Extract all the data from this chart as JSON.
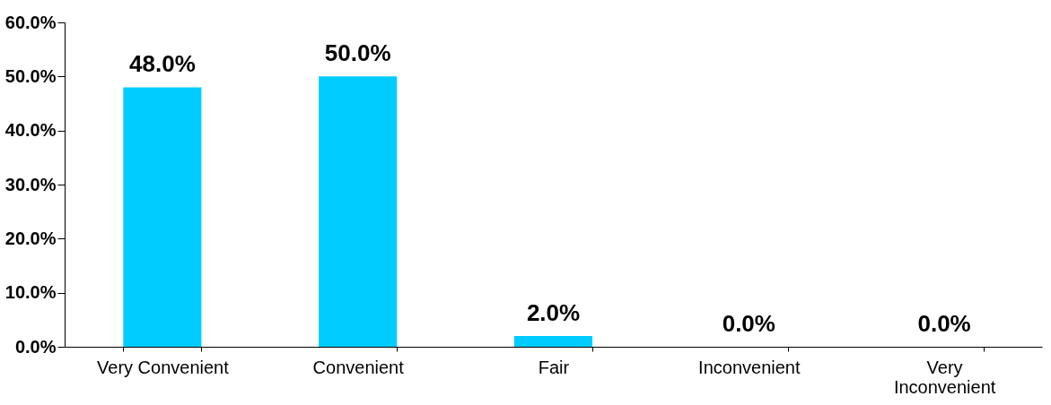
{
  "chart_data": {
    "type": "bar",
    "categories": [
      "Very Convenient",
      "Convenient",
      "Fair",
      "Inconvenient",
      "Very Inconvenient"
    ],
    "values": [
      48.0,
      50.0,
      2.0,
      0.0,
      0.0
    ],
    "value_labels": [
      "48.0%",
      "50.0%",
      "2.0%",
      "0.0%",
      "0.0%"
    ],
    "color": "#00ccff",
    "ylim": [
      0,
      60
    ],
    "yticks": [
      {
        "value": 0,
        "label": "0.0%"
      },
      {
        "value": 10,
        "label": "10.0%"
      },
      {
        "value": 20,
        "label": "20.0%"
      },
      {
        "value": 30,
        "label": "30.0%"
      },
      {
        "value": 40,
        "label": "40.0%"
      },
      {
        "value": 50,
        "label": "50.0%"
      },
      {
        "value": 60,
        "label": "60.0%"
      }
    ],
    "grid": false
  }
}
